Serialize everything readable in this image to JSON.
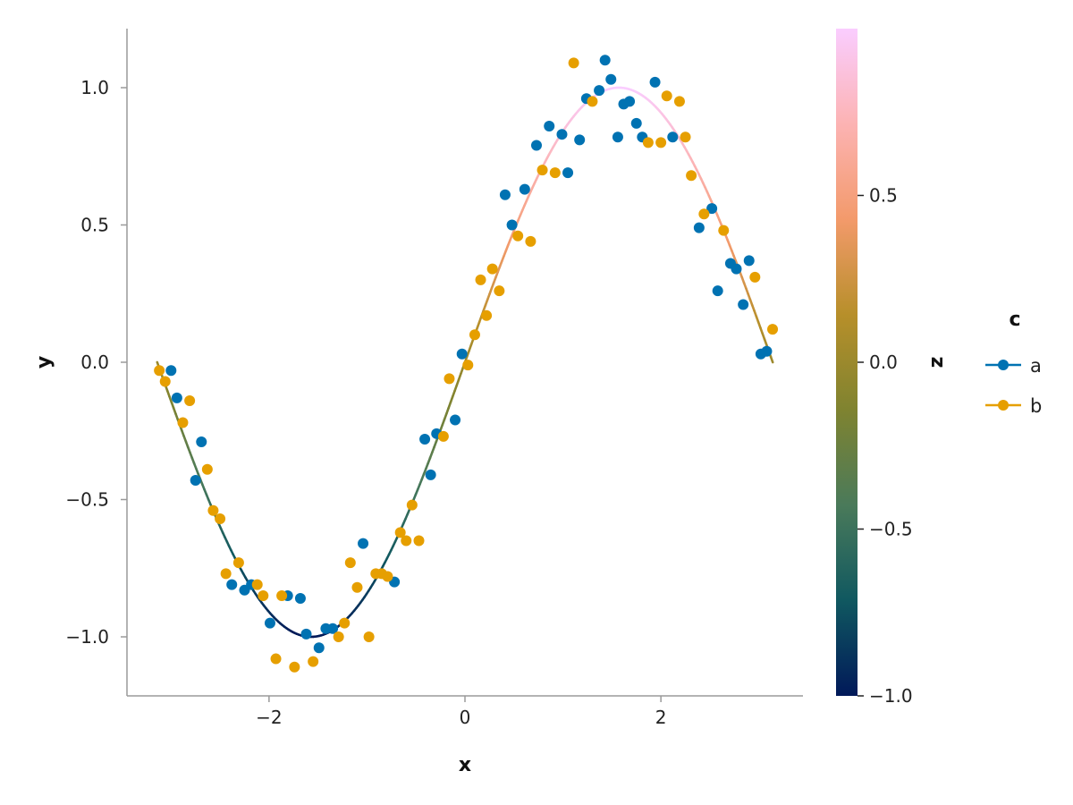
{
  "chart_data": {
    "type": "scatter",
    "xlabel": "x",
    "ylabel": "y",
    "xlim": [
      -3.45,
      3.45
    ],
    "ylim": [
      -1.215,
      1.215
    ],
    "x_ticks": [
      -2,
      0,
      2
    ],
    "x_tick_labels": [
      "−2",
      "0",
      "2"
    ],
    "y_ticks": [
      -1.0,
      -0.5,
      0.0,
      0.5,
      1.0
    ],
    "y_tick_labels": [
      "−1.0",
      "−0.5",
      "0.0",
      "0.5",
      "1.0"
    ],
    "grid": false,
    "curve": {
      "type": "line",
      "function": "sin(x)",
      "x_range": [
        -3.1416,
        3.1416
      ],
      "color_by": "z = y",
      "colormap": "batlow"
    },
    "colorbar": {
      "label": "z",
      "range": [
        -1.0,
        1.0
      ],
      "ticks": [
        -1.0,
        -0.5,
        0.0,
        0.5
      ],
      "tick_labels": [
        "−1.0",
        "−0.5",
        "0.0",
        "0.5"
      ],
      "stops": [
        "#011959",
        "#105860",
        "#4a7a5a",
        "#7f8330",
        "#b78f2a",
        "#f39a6b",
        "#fcb3b3",
        "#facdff"
      ]
    },
    "legend": {
      "title": "c",
      "position": "right",
      "entries": [
        {
          "name": "a",
          "color": "#0072b2"
        },
        {
          "name": "b",
          "color": "#e69f00"
        }
      ]
    },
    "series": [
      {
        "name": "a",
        "color": "#0072b2",
        "points": [
          [
            -3.0,
            -0.03
          ],
          [
            -2.94,
            -0.13
          ],
          [
            -2.75,
            -0.43
          ],
          [
            -2.69,
            -0.29
          ],
          [
            -2.38,
            -0.81
          ],
          [
            -2.25,
            -0.83
          ],
          [
            -2.18,
            -0.81
          ],
          [
            -1.99,
            -0.95
          ],
          [
            -1.81,
            -0.85
          ],
          [
            -1.68,
            -0.86
          ],
          [
            -1.62,
            -0.99
          ],
          [
            -1.49,
            -1.04
          ],
          [
            -1.42,
            -0.97
          ],
          [
            -1.35,
            -0.97
          ],
          [
            -1.04,
            -0.66
          ],
          [
            -0.72,
            -0.8
          ],
          [
            -0.41,
            -0.28
          ],
          [
            -0.35,
            -0.41
          ],
          [
            -0.29,
            -0.26
          ],
          [
            -0.1,
            -0.21
          ],
          [
            -0.03,
            0.03
          ],
          [
            0.41,
            0.61
          ],
          [
            0.48,
            0.5
          ],
          [
            0.61,
            0.63
          ],
          [
            0.73,
            0.79
          ],
          [
            0.86,
            0.86
          ],
          [
            0.99,
            0.83
          ],
          [
            1.05,
            0.69
          ],
          [
            1.17,
            0.81
          ],
          [
            1.24,
            0.96
          ],
          [
            1.37,
            0.99
          ],
          [
            1.43,
            1.1
          ],
          [
            1.49,
            1.03
          ],
          [
            1.56,
            0.82
          ],
          [
            1.62,
            0.94
          ],
          [
            1.68,
            0.95
          ],
          [
            1.75,
            0.87
          ],
          [
            1.81,
            0.82
          ],
          [
            1.94,
            1.02
          ],
          [
            2.12,
            0.82
          ],
          [
            2.39,
            0.49
          ],
          [
            2.52,
            0.56
          ],
          [
            2.58,
            0.26
          ],
          [
            2.71,
            0.36
          ],
          [
            2.77,
            0.34
          ],
          [
            2.84,
            0.21
          ],
          [
            2.9,
            0.37
          ],
          [
            3.02,
            0.03
          ],
          [
            3.08,
            0.04
          ]
        ]
      },
      {
        "name": "b",
        "color": "#e69f00",
        "points": [
          [
            -3.12,
            -0.03
          ],
          [
            -3.06,
            -0.07
          ],
          [
            -2.88,
            -0.22
          ],
          [
            -2.81,
            -0.14
          ],
          [
            -2.63,
            -0.39
          ],
          [
            -2.57,
            -0.54
          ],
          [
            -2.5,
            -0.57
          ],
          [
            -2.44,
            -0.77
          ],
          [
            -2.31,
            -0.73
          ],
          [
            -2.12,
            -0.81
          ],
          [
            -2.06,
            -0.85
          ],
          [
            -1.93,
            -1.08
          ],
          [
            -1.87,
            -0.85
          ],
          [
            -1.74,
            -1.11
          ],
          [
            -1.55,
            -1.09
          ],
          [
            -1.29,
            -1.0
          ],
          [
            -1.23,
            -0.95
          ],
          [
            -1.17,
            -0.73
          ],
          [
            -1.1,
            -0.82
          ],
          [
            -0.98,
            -1.0
          ],
          [
            -0.91,
            -0.77
          ],
          [
            -0.85,
            -0.77
          ],
          [
            -0.79,
            -0.78
          ],
          [
            -0.66,
            -0.62
          ],
          [
            -0.6,
            -0.65
          ],
          [
            -0.54,
            -0.52
          ],
          [
            -0.47,
            -0.65
          ],
          [
            -0.22,
            -0.27
          ],
          [
            -0.16,
            -0.06
          ],
          [
            0.03,
            -0.01
          ],
          [
            0.1,
            0.1
          ],
          [
            0.16,
            0.3
          ],
          [
            0.22,
            0.17
          ],
          [
            0.28,
            0.34
          ],
          [
            0.35,
            0.26
          ],
          [
            0.54,
            0.46
          ],
          [
            0.67,
            0.44
          ],
          [
            0.79,
            0.7
          ],
          [
            0.92,
            0.69
          ],
          [
            1.11,
            1.09
          ],
          [
            1.3,
            0.95
          ],
          [
            1.87,
            0.8
          ],
          [
            2.0,
            0.8
          ],
          [
            2.06,
            0.97
          ],
          [
            2.19,
            0.95
          ],
          [
            2.25,
            0.82
          ],
          [
            2.31,
            0.68
          ],
          [
            2.44,
            0.54
          ],
          [
            2.64,
            0.48
          ],
          [
            2.96,
            0.31
          ],
          [
            3.14,
            0.12
          ]
        ]
      }
    ]
  }
}
